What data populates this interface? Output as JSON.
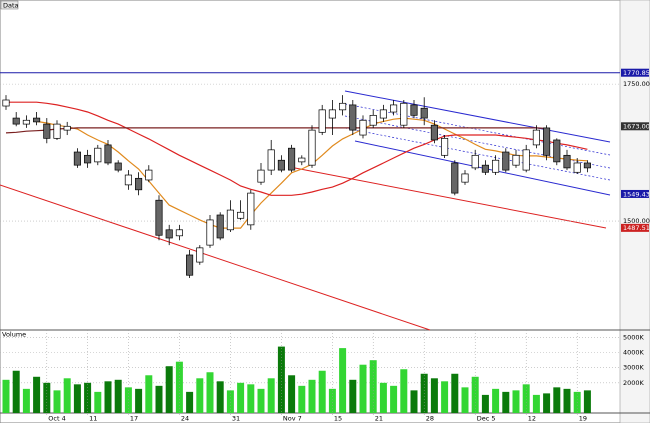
{
  "chart_data": [
    {
      "type": "candlestick",
      "title": "Data",
      "open": [
        1710,
        1688,
        1677,
        1688,
        1677,
        1651,
        1666,
        1626,
        1620,
        1608,
        1639,
        1606,
        1566,
        1578,
        1575,
        1538,
        1484,
        1473,
        1438,
        1425,
        1456,
        1511,
        1484,
        1505,
        1493,
        1571,
        1593,
        1611,
        1633,
        1608,
        1602,
        1662,
        1688,
        1703,
        1712,
        1657,
        1675,
        1688,
        1699,
        1675,
        1712,
        1706,
        1675,
        1620,
        1606,
        1571,
        1597,
        1602,
        1589,
        1626,
        1602,
        1593,
        1639,
        1670,
        1648,
        1620,
        1589,
        1606
      ],
      "high": [
        1730,
        1699,
        1693,
        1699,
        1688,
        1684,
        1681,
        1633,
        1630,
        1639,
        1648,
        1611,
        1593,
        1589,
        1602,
        1547,
        1493,
        1493,
        1447,
        1456,
        1511,
        1516,
        1538,
        1538,
        1557,
        1606,
        1648,
        1620,
        1639,
        1620,
        1675,
        1712,
        1721,
        1730,
        1721,
        1693,
        1703,
        1712,
        1721,
        1721,
        1721,
        1726,
        1684,
        1657,
        1611,
        1593,
        1630,
        1611,
        1620,
        1633,
        1630,
        1639,
        1675,
        1675,
        1651,
        1630,
        1615,
        1611
      ],
      "low": [
        1703,
        1673,
        1670,
        1675,
        1642,
        1648,
        1657,
        1597,
        1597,
        1602,
        1602,
        1589,
        1557,
        1547,
        1571,
        1465,
        1456,
        1465,
        1396,
        1420,
        1451,
        1465,
        1480,
        1502,
        1484,
        1566,
        1584,
        1589,
        1589,
        1602,
        1597,
        1657,
        1657,
        1693,
        1657,
        1651,
        1670,
        1681,
        1693,
        1670,
        1688,
        1675,
        1642,
        1615,
        1547,
        1566,
        1593,
        1584,
        1584,
        1589,
        1597,
        1589,
        1633,
        1611,
        1602,
        1593,
        1586,
        1589
      ],
      "close": [
        1721,
        1677,
        1684,
        1681,
        1651,
        1677,
        1673,
        1602,
        1606,
        1633,
        1606,
        1593,
        1584,
        1557,
        1593,
        1474,
        1469,
        1484,
        1401,
        1451,
        1502,
        1469,
        1520,
        1516,
        1551,
        1593,
        1630,
        1593,
        1593,
        1615,
        1666,
        1703,
        1703,
        1715,
        1666,
        1684,
        1693,
        1703,
        1712,
        1715,
        1693,
        1688,
        1648,
        1651,
        1551,
        1586,
        1620,
        1589,
        1611,
        1593,
        1620,
        1630,
        1666,
        1620,
        1608,
        1597,
        1606,
        1597
      ],
      "up_color": "#ffffff",
      "down_color": "#666666",
      "overlays": [
        {
          "color": "#e08a1e",
          "values": [
            null,
            null,
            null,
            1682,
            1679,
            1675,
            1672,
            1668,
            1657,
            1648,
            1640,
            1626,
            1610,
            1595,
            1573,
            1551,
            1529,
            1520,
            1511,
            1502,
            1494,
            1487,
            1487,
            1487,
            1511,
            1533,
            1551,
            1569,
            1588,
            1595,
            1604,
            1620,
            1637,
            1650,
            1659,
            1668,
            1677,
            1682,
            1686,
            1688,
            1686,
            1684,
            1677,
            1668,
            1659,
            1650,
            1640,
            1631,
            1628,
            1624,
            1620,
            1619,
            1619,
            1617,
            1615,
            1613,
            1611,
            1610
          ]
        },
        {
          "color": "#dd2222",
          "values": [
            1717,
            1717,
            1717,
            1717,
            1715,
            1712,
            1708,
            1704,
            1699,
            1692,
            1684,
            1677,
            1668,
            1659,
            1650,
            1640,
            1630,
            1620,
            1611,
            1602,
            1593,
            1584,
            1575,
            1564,
            1558,
            1553,
            1547,
            1547,
            1547,
            1549,
            1553,
            1558,
            1562,
            1569,
            1578,
            1588,
            1597,
            1606,
            1615,
            1624,
            1633,
            1640,
            1648,
            1655,
            1657,
            1657,
            1657,
            1657,
            1657,
            1655,
            1653,
            1651,
            1648,
            1646,
            1642,
            1639,
            1635,
            1631
          ]
        },
        {
          "color": "#7a2020",
          "values": [
            1661,
            1662,
            1664,
            1665,
            1666,
            1668,
            1669,
            1670,
            1670,
            1670,
            1670,
            1670,
            1670,
            1670,
            1670,
            1670,
            1670,
            1670,
            1670,
            1670,
            1670,
            1670,
            1670,
            1670,
            1670,
            1670,
            1670,
            1670,
            1670,
            1670,
            1670,
            1670,
            1670,
            1670,
            1670,
            1670,
            1670,
            1670,
            1670,
            1670,
            1670,
            1670,
            1670,
            1670,
            1670,
            1670,
            1670,
            1670,
            1670,
            1670,
            1670,
            1670,
            1670,
            1669,
            null,
            null,
            null,
            null
          ]
        }
      ],
      "hline": 1770.85,
      "hline_color": "#1a1aa8",
      "price_tags": [
        {
          "value": 1770.85,
          "label": "1770.85",
          "color": "#1a1aa8"
        },
        {
          "value": 1673,
          "label": "1673.00",
          "color": "#333333"
        },
        {
          "value": 1549.43,
          "label": "1549.43",
          "color": "#1a1aa8"
        },
        {
          "value": 1487.51,
          "label": "1487.51",
          "color": "#cc2222"
        }
      ],
      "ylim": [
        1301,
        1889
      ],
      "yticks": [
        {
          "value": 1750,
          "label": "1750.00"
        },
        {
          "value": 1500,
          "label": "1500.00"
        }
      ],
      "grid": true
    },
    {
      "type": "bar",
      "title": "Volume",
      "categories": [
        null,
        null,
        null,
        null,
        "Oct 4",
        null,
        null,
        null,
        "11",
        null,
        null,
        null,
        "17",
        null,
        null,
        null,
        null,
        "24",
        null,
        null,
        null,
        null,
        "31",
        null,
        null,
        null,
        null,
        "Nov 7",
        null,
        null,
        null,
        null,
        "15",
        null,
        null,
        null,
        "21",
        null,
        null,
        null,
        null,
        "28",
        null,
        null,
        null,
        null,
        "Dec 5",
        null,
        null,
        null,
        null,
        "12",
        null,
        null,
        null,
        null,
        "19",
        null
      ],
      "values": [
        2200,
        2800,
        1600,
        2400,
        2000,
        1500,
        2300,
        1900,
        2000,
        1400,
        2100,
        2200,
        1700,
        1600,
        2500,
        1800,
        3100,
        3400,
        1400,
        2300,
        2700,
        2100,
        1500,
        2000,
        1900,
        1600,
        2300,
        4400,
        2500,
        1800,
        2200,
        2800,
        1600,
        4300,
        2200,
        3200,
        3500,
        2000,
        1800,
        2900,
        1500,
        2600,
        2300,
        2100,
        2600,
        1700,
        2400,
        1200,
        1600,
        1400,
        1500,
        1900,
        1200,
        1300,
        1700,
        1600,
        1400,
        1500
      ],
      "up_color": "#33d633",
      "down_color": "#0b7a0b",
      "ylim": [
        0,
        5500
      ],
      "yticks": [
        {
          "value": 2000,
          "label": "2000K"
        },
        {
          "value": 3000,
          "label": "3000K"
        },
        {
          "value": 4000,
          "label": "4000K"
        },
        {
          "value": 5000,
          "label": "5000K"
        }
      ],
      "grid": true
    }
  ]
}
